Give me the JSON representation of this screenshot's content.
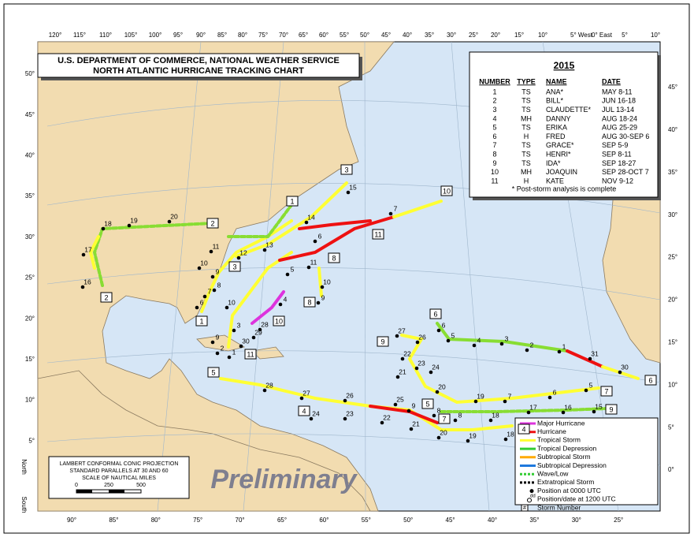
{
  "header": {
    "line1": "U.S. DEPARTMENT OF COMMERCE, NATIONAL WEATHER SERVICE",
    "line2": "NORTH ATLANTIC HURRICANE TRACKING CHART"
  },
  "season": {
    "year": "2015",
    "columns": [
      "NUMBER",
      "TYPE",
      "NAME",
      "DATE"
    ],
    "rows": [
      [
        "1",
        "TS",
        "ANA*",
        "MAY 8-11"
      ],
      [
        "2",
        "TS",
        "BILL*",
        "JUN 16-18"
      ],
      [
        "3",
        "TS",
        "CLAUDETTE*",
        "JUL 13-14"
      ],
      [
        "4",
        "MH",
        "DANNY",
        "AUG 18-24"
      ],
      [
        "5",
        "TS",
        "ERIKA",
        "AUG 25-29"
      ],
      [
        "6",
        "H",
        "FRED",
        "AUG 30-SEP 6"
      ],
      [
        "7",
        "TS",
        "GRACE*",
        "SEP  5-9"
      ],
      [
        "8",
        "TS",
        "HENRI*",
        "SEP  8-11"
      ],
      [
        "9",
        "TS",
        "IDA*",
        "SEP 18-27"
      ],
      [
        "10",
        "MH",
        "JOAQUIN",
        "SEP 28-OCT 7"
      ],
      [
        "11",
        "H",
        "KATE",
        "NOV  9-12"
      ]
    ],
    "note": "* Post-storm analysis is complete"
  },
  "legend": {
    "items": [
      "Major Hurricane",
      "Hurricane",
      "Tropical Storm",
      "Tropical Depression",
      "Subtropical Storm",
      "Subtropical Depression",
      "Wave/Low",
      "Extratropical Storm",
      "Position at 0000 UTC",
      "Position/date at 1200 UTC",
      "Storm Number"
    ],
    "symbols": [
      "dd",
      "#"
    ]
  },
  "projection": {
    "lines": [
      "LAMBERT CONFORMAL CONIC PROJECTION",
      "STANDARD PARALLELS AT 30 AND 60",
      "SCALE OF NAUTICAL MILES"
    ],
    "scale": [
      "0",
      "250",
      "500"
    ]
  },
  "watermark": "Preliminary",
  "top_longitudes": [
    "120°",
    "115°",
    "110°",
    "105°",
    "100°",
    "95°",
    "90°",
    "85°",
    "80°",
    "75°",
    "70°",
    "65°",
    "60°",
    "55°",
    "50°",
    "45°",
    "40°",
    "35°",
    "30°",
    "25°",
    "20°",
    "15°",
    "10°",
    "5° West",
    "0° East",
    "5°",
    "10°"
  ],
  "bottom_longitudes": [
    "90°",
    "85°",
    "80°",
    "75°",
    "70°",
    "65°",
    "60°",
    "55°",
    "50°",
    "45°",
    "40°",
    "35°",
    "30°",
    "25°"
  ],
  "left_latitudes": [
    "50°",
    "45°",
    "40°",
    "35°",
    "30°",
    "25°",
    "20°",
    "15°",
    "10°",
    "5°"
  ],
  "right_latitudes": [
    "45°",
    "40°",
    "35°",
    "30°",
    "25°",
    "20°",
    "15°",
    "10°",
    "5°",
    "0°"
  ],
  "side_labels": {
    "north": "North",
    "south": "South"
  },
  "storm_numbers": [
    "1",
    "2",
    "3",
    "1",
    "2",
    "3",
    "4",
    "4",
    "5",
    "5",
    "6",
    "6",
    "7",
    "7",
    "8",
    "8",
    "9",
    "9",
    "10",
    "10",
    "11",
    "11"
  ],
  "date_labels": [
    "18",
    "19",
    "20",
    "17",
    "16",
    "11",
    "12",
    "13",
    "14",
    "15",
    "10",
    "9",
    "8",
    "7",
    "6",
    "10",
    "5",
    "4",
    "11",
    "6",
    "7",
    "10",
    "9",
    "3",
    "9",
    "2",
    "1",
    "30",
    "29",
    "28",
    "27",
    "26",
    "22",
    "23",
    "21",
    "24",
    "20",
    "6",
    "5",
    "4",
    "3",
    "2",
    "1",
    "31",
    "30",
    "28",
    "27",
    "26",
    "25",
    "24",
    "23",
    "22",
    "9",
    "21",
    "8",
    "20",
    "19",
    "18",
    "19",
    "7",
    "6",
    "5",
    "8",
    "18",
    "17",
    "16",
    "15"
  ]
}
